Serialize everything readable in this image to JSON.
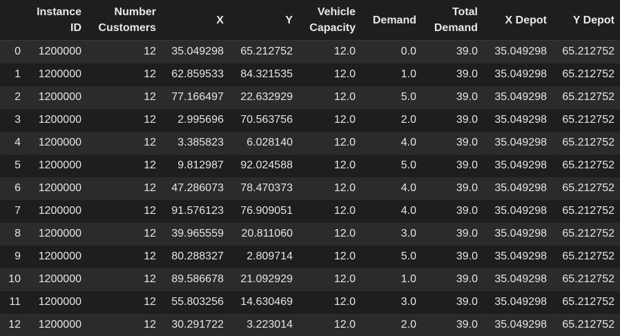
{
  "table": {
    "index_header": "",
    "columns": [
      [
        "Instance",
        "ID"
      ],
      [
        "Number",
        "Customers"
      ],
      [
        "X"
      ],
      [
        "Y"
      ],
      [
        "Vehicle",
        "Capacity"
      ],
      [
        "Demand"
      ],
      [
        "Total",
        "Demand"
      ],
      [
        "X Depot"
      ],
      [
        "Y Depot"
      ]
    ],
    "rows": [
      {
        "index": "0",
        "cells": [
          "1200000",
          "12",
          "35.049298",
          "65.212752",
          "12.0",
          "0.0",
          "39.0",
          "35.049298",
          "65.212752"
        ]
      },
      {
        "index": "1",
        "cells": [
          "1200000",
          "12",
          "62.859533",
          "84.321535",
          "12.0",
          "1.0",
          "39.0",
          "35.049298",
          "65.212752"
        ]
      },
      {
        "index": "2",
        "cells": [
          "1200000",
          "12",
          "77.166497",
          "22.632929",
          "12.0",
          "5.0",
          "39.0",
          "35.049298",
          "65.212752"
        ]
      },
      {
        "index": "3",
        "cells": [
          "1200000",
          "12",
          "2.995696",
          "70.563756",
          "12.0",
          "2.0",
          "39.0",
          "35.049298",
          "65.212752"
        ]
      },
      {
        "index": "4",
        "cells": [
          "1200000",
          "12",
          "3.385823",
          "6.028140",
          "12.0",
          "4.0",
          "39.0",
          "35.049298",
          "65.212752"
        ]
      },
      {
        "index": "5",
        "cells": [
          "1200000",
          "12",
          "9.812987",
          "92.024588",
          "12.0",
          "5.0",
          "39.0",
          "35.049298",
          "65.212752"
        ]
      },
      {
        "index": "6",
        "cells": [
          "1200000",
          "12",
          "47.286073",
          "78.470373",
          "12.0",
          "4.0",
          "39.0",
          "35.049298",
          "65.212752"
        ]
      },
      {
        "index": "7",
        "cells": [
          "1200000",
          "12",
          "91.576123",
          "76.909051",
          "12.0",
          "4.0",
          "39.0",
          "35.049298",
          "65.212752"
        ]
      },
      {
        "index": "8",
        "cells": [
          "1200000",
          "12",
          "39.965559",
          "20.811060",
          "12.0",
          "3.0",
          "39.0",
          "35.049298",
          "65.212752"
        ]
      },
      {
        "index": "9",
        "cells": [
          "1200000",
          "12",
          "80.288327",
          "2.809714",
          "12.0",
          "5.0",
          "39.0",
          "35.049298",
          "65.212752"
        ]
      },
      {
        "index": "10",
        "cells": [
          "1200000",
          "12",
          "89.586678",
          "21.092929",
          "12.0",
          "1.0",
          "39.0",
          "35.049298",
          "65.212752"
        ]
      },
      {
        "index": "11",
        "cells": [
          "1200000",
          "12",
          "55.803256",
          "14.630469",
          "12.0",
          "3.0",
          "39.0",
          "35.049298",
          "65.212752"
        ]
      },
      {
        "index": "12",
        "cells": [
          "1200000",
          "12",
          "30.291722",
          "3.223014",
          "12.0",
          "2.0",
          "39.0",
          "35.049298",
          "65.212752"
        ]
      }
    ]
  }
}
